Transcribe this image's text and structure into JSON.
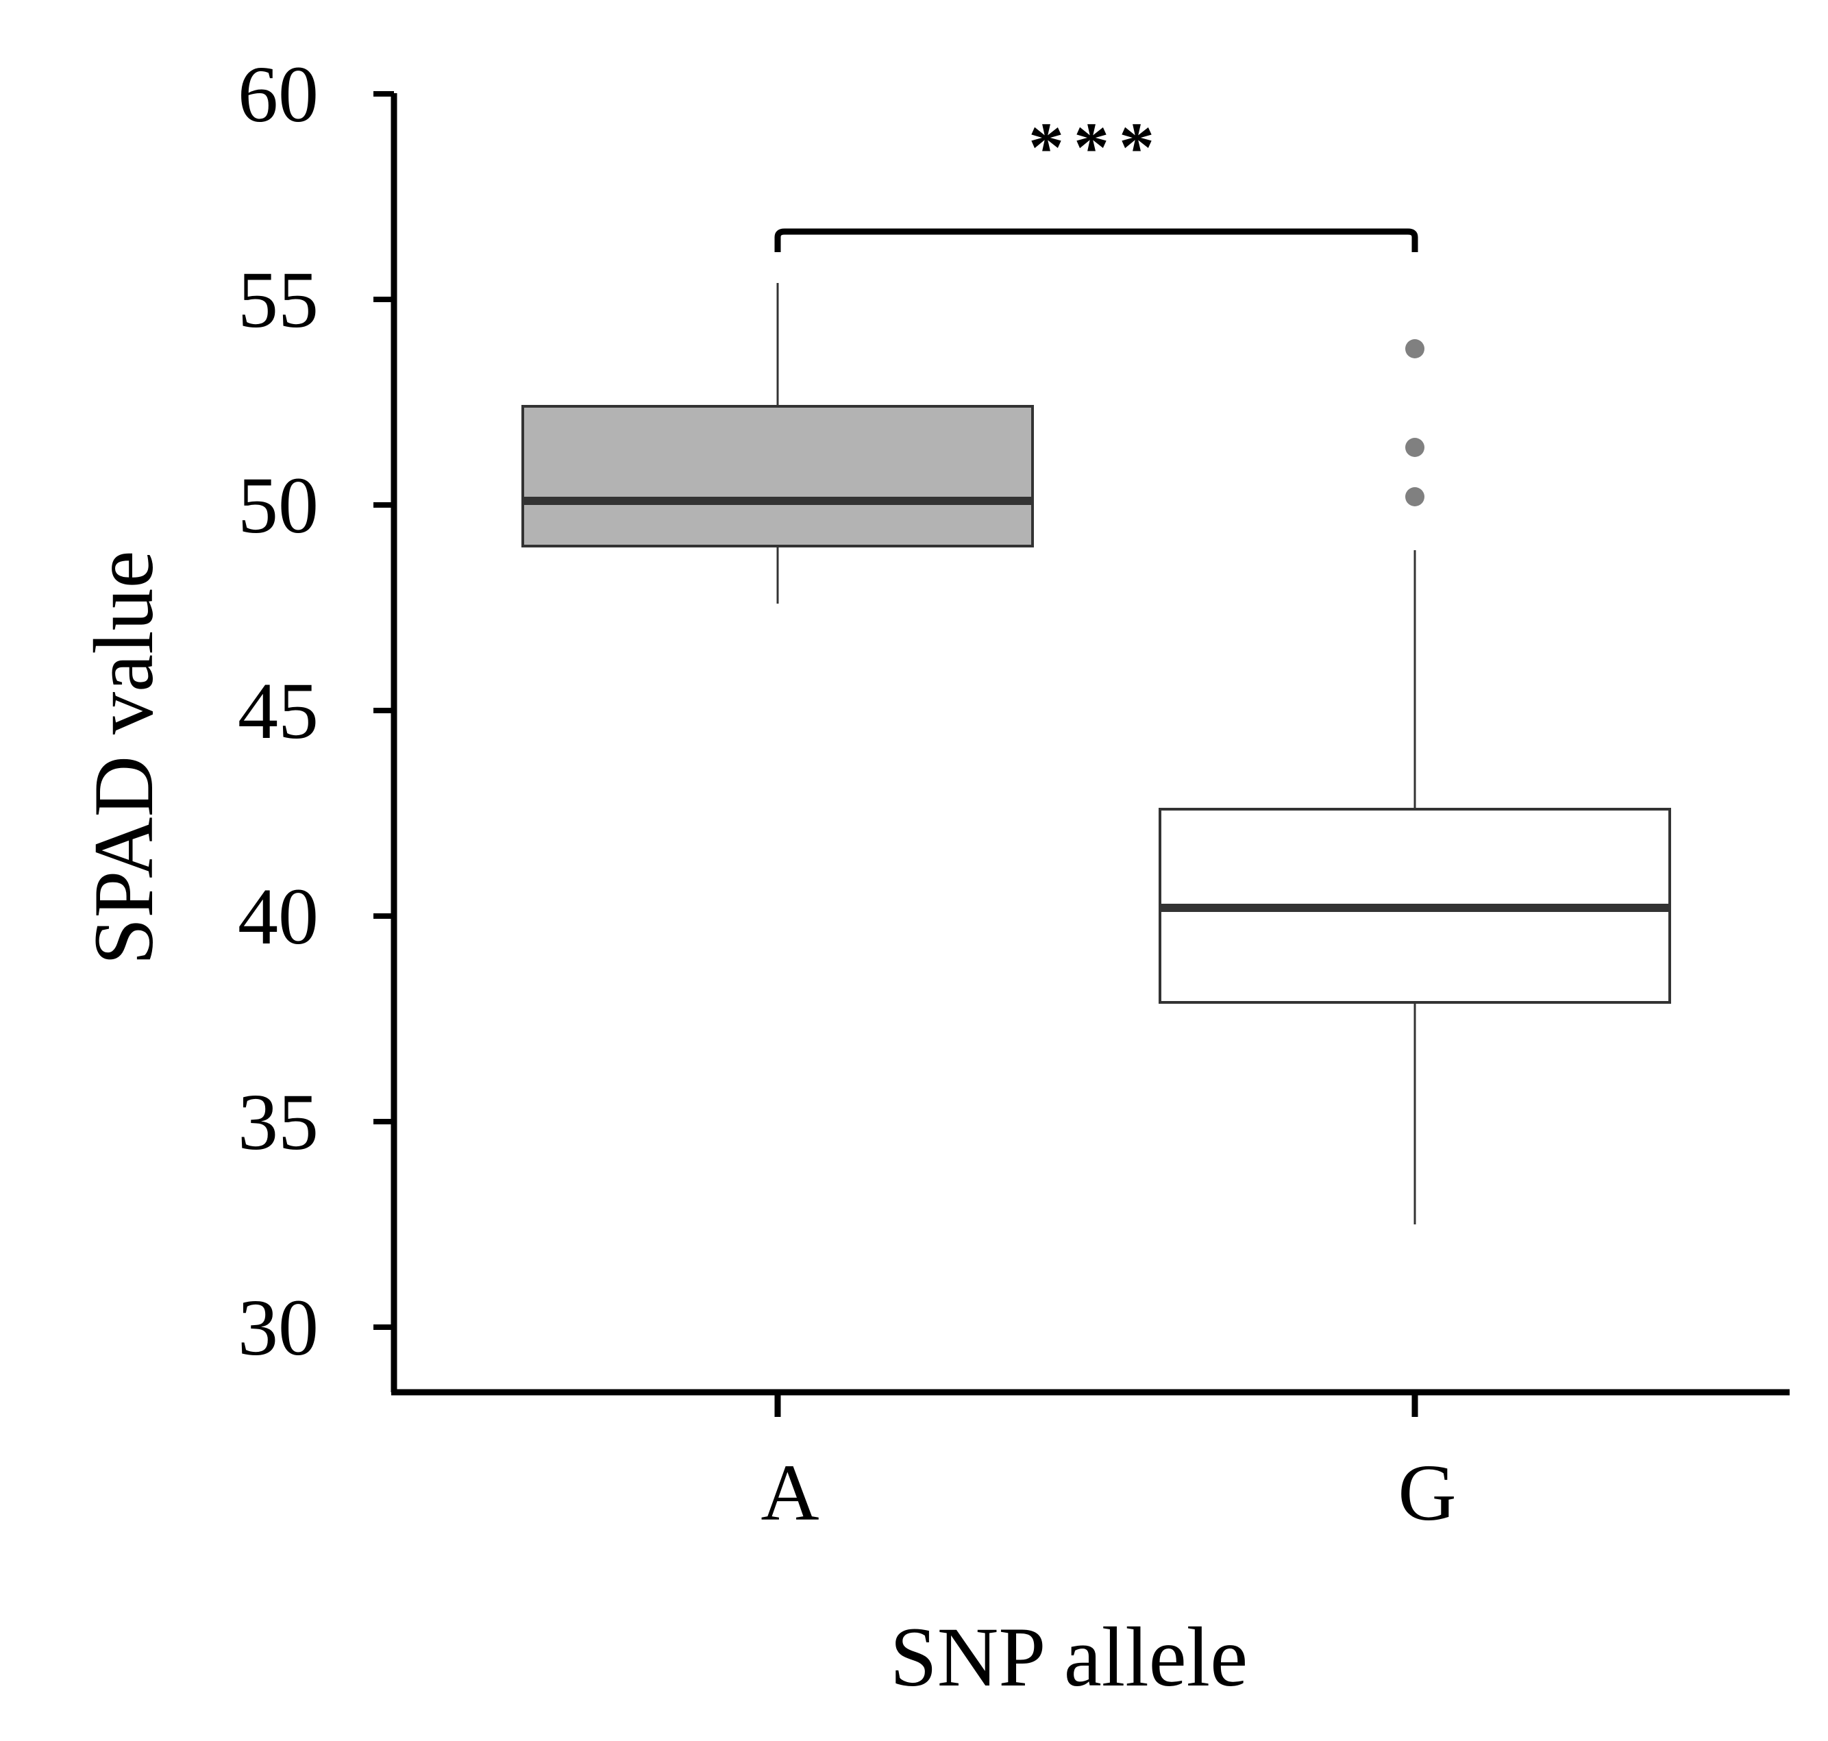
{
  "chart_data": {
    "type": "box",
    "title": "",
    "xlabel": "SNP allele",
    "ylabel": "SPAD value",
    "ylim": [
      28.4,
      60
    ],
    "yticks": [
      30,
      35,
      40,
      45,
      50,
      55,
      60
    ],
    "grid": false,
    "legend": "none",
    "categories": [
      "A",
      "G"
    ],
    "boxes": [
      {
        "category": "A",
        "whisker_low": 47.6,
        "q1": 49.0,
        "median": 50.1,
        "q3": 52.4,
        "whisker_high": 55.4,
        "outliers": [],
        "fill": "#b3b3b3"
      },
      {
        "category": "G",
        "whisker_low": 32.5,
        "q1": 37.9,
        "median": 40.2,
        "q3": 42.6,
        "whisker_high": 48.9,
        "outliers": [
          53.8,
          51.4,
          50.2
        ],
        "fill": "#ffffff"
      }
    ],
    "significance": {
      "between": [
        "A",
        "G"
      ],
      "label": "***"
    }
  },
  "colors": {
    "axis": "#000000",
    "box_stroke": "#333333",
    "median": "#333333",
    "whisker": "#333333",
    "outlier": "#808080",
    "fill_A": "#b3b3b3",
    "fill_G": "#ffffff"
  }
}
